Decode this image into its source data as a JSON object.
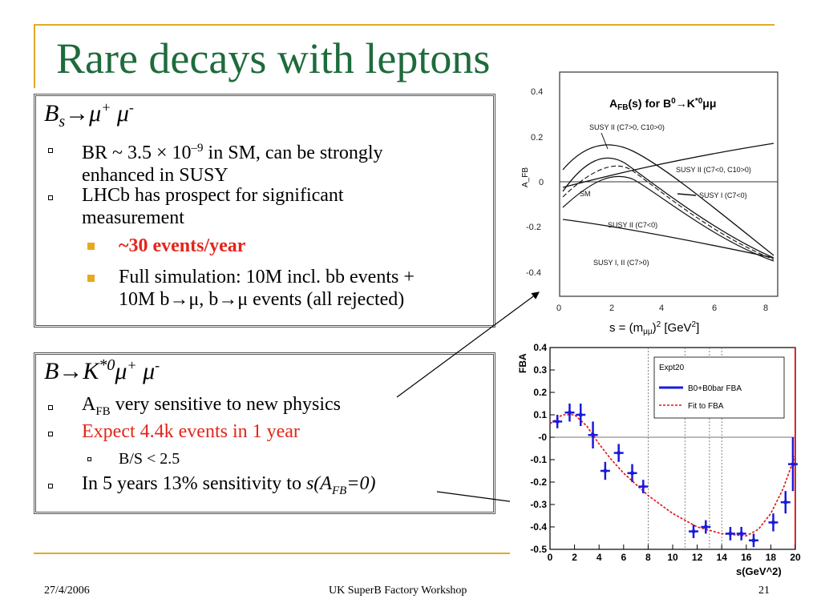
{
  "slide": {
    "title": "Rare decays with leptons",
    "footer_date": "27/4/2006",
    "footer_center": "UK SuperB Factory Workshop",
    "page_number": "21"
  },
  "box1": {
    "heading_main": "B",
    "heading_sub": "s",
    "heading_rest": "→μ",
    "heading_sup1": "+",
    "heading_mu2": " μ",
    "heading_sup2": "-",
    "bullet1_line1": "BR ~ 3.5 × 10",
    "bullet1_exp": "–9",
    "bullet1_line1_tail": " in SM, can be strongly",
    "bullet1_line2": "enhanced in SUSY",
    "bullet2_line1": "LHCb has prospect for significant",
    "bullet2_line2": "measurement",
    "sub1": "~30 events/year",
    "sub2_line1": "Full simulation: 10M incl. bb events +",
    "sub2_line2": "10M b→μ, b→μ events (all rejected)"
  },
  "box2": {
    "heading_main": "B→K",
    "heading_sup": "*0",
    "heading_rest": "μ",
    "heading_sup1": "+",
    "heading_mu2": " μ",
    "heading_sup2": "-",
    "bullet1_pre": "A",
    "bullet1_sub": "FB",
    "bullet1_tail": " very sensitive to new physics",
    "bullet2": "Expect 4.4k events in 1 year",
    "sub1": "B/S < 2.5",
    "bullet3_pre": "In 5 years 13% sensitivity to ",
    "bullet3_it": "s(A",
    "bullet3_it_sub": "FB",
    "bullet3_it_tail": "=0)"
  },
  "theory_plot": {
    "title_pre": "A",
    "title_sub": "FB",
    "title_tail": "(s) for B",
    "title_sup0": "0",
    "title_arrow": "→K",
    "title_sup1": "*0",
    "title_mumu": "μμ",
    "ylabel": "A_FB",
    "yticks": [
      "0.4",
      "0.2",
      "0",
      "-0.2",
      "-0.4"
    ],
    "xticks": [
      "0",
      "2",
      "4",
      "6",
      "8"
    ],
    "xlabel": "s = (m",
    "xlabel_sub": "μμ",
    "xlabel_tail": ")",
    "xlabel_sup": "2",
    "xlabel_unit": " [GeV",
    "xlabel_unit_sup": "2",
    "xlabel_unit_tail": "]",
    "curve_labels": {
      "susy2_pos": "SUSY II (C7>0, C10>0)",
      "susy2_neg": "SUSY II (C7<0, C10>0)",
      "sm": "SM",
      "susy1_neg": "SUSY I (C7<0)",
      "susy2_c7neg": "SUSY II (C7<0)",
      "susy12_pos": "SUSY I, II (C7>0)"
    }
  },
  "chart_data": {
    "type": "scatter",
    "title": "",
    "xlabel": "s(GeV^2)",
    "ylabel": "FBA",
    "xlim": [
      0,
      20
    ],
    "ylim": [
      -0.5,
      0.4
    ],
    "xticks": [
      "0",
      "2",
      "4",
      "6",
      "8",
      "10",
      "12",
      "14",
      "16",
      "18",
      "20"
    ],
    "yticks": [
      "0.4",
      "0.3",
      "0.2",
      "0.1",
      "-0",
      "-0.1",
      "-0.2",
      "-0.3",
      "-0.4",
      "-0.5"
    ],
    "legend_title": "Expt20",
    "legend_placement": "top-right",
    "series": [
      {
        "name": "B0+B0bar FBA",
        "color": "#1a1adc",
        "x": [
          0.6,
          1.6,
          2.5,
          3.5,
          4.5,
          5.6,
          6.7,
          7.6,
          11.7,
          12.7,
          14.7,
          15.6,
          16.6,
          18.2,
          19.2,
          19.8
        ],
        "y": [
          0.07,
          0.11,
          0.1,
          0.01,
          -0.15,
          -0.07,
          -0.16,
          -0.22,
          -0.42,
          -0.4,
          -0.43,
          -0.43,
          -0.46,
          -0.38,
          -0.29,
          -0.12
        ],
        "yerr": [
          0.03,
          0.04,
          0.05,
          0.06,
          0.04,
          0.04,
          0.04,
          0.03,
          0.03,
          0.03,
          0.03,
          0.03,
          0.03,
          0.04,
          0.05,
          0.12
        ]
      },
      {
        "name": "Fit to FBA",
        "color": "#e01010",
        "x": [
          0,
          1,
          2,
          3,
          4,
          5,
          6,
          7,
          8,
          10,
          12,
          14,
          16,
          17,
          18,
          19,
          20
        ],
        "y": [
          0.06,
          0.1,
          0.1,
          0.05,
          -0.03,
          -0.1,
          -0.16,
          -0.21,
          -0.26,
          -0.34,
          -0.4,
          -0.43,
          -0.44,
          -0.41,
          -0.34,
          -0.23,
          -0.08
        ]
      }
    ],
    "vlines": [
      8,
      11,
      13,
      14
    ]
  }
}
